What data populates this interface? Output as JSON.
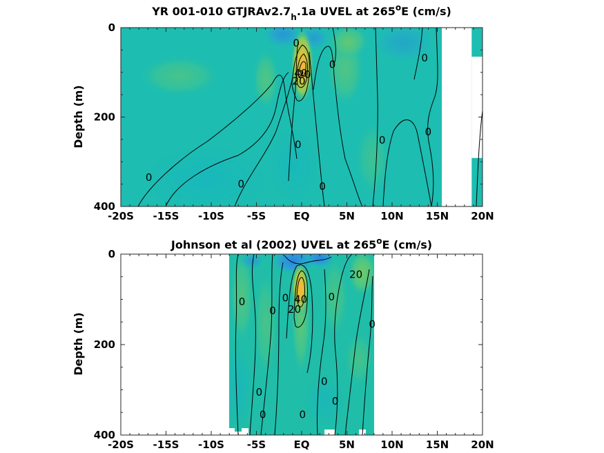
{
  "chart_data": [
    {
      "type": "contour",
      "title_main": "YR 001-010 GTJRAv2.7",
      "title_sub": "h",
      "title_mid": ".1a UVEL at 265",
      "title_sup": "o",
      "title_end": "E (cm/s)",
      "ylabel": "Depth (m)",
      "xlim": [
        -20,
        20
      ],
      "ylim": [
        0,
        400
      ],
      "y_reversed": true,
      "x_ticks": [
        -20,
        -15,
        -10,
        -5,
        0,
        5,
        10,
        15,
        20
      ],
      "x_tick_labels": [
        "-20S",
        "-15S",
        "-10S",
        "-5S",
        "EQ",
        "5N",
        "10N",
        "15N",
        "20N"
      ],
      "y_ticks": [
        0,
        200,
        400
      ],
      "y_tick_labels": [
        "0",
        "200",
        "400"
      ],
      "data_extent_x": [
        -20,
        20
      ],
      "blank_regions": [
        [
          15.5,
          0,
          18.8,
          400
        ],
        [
          18.8,
          65,
          20,
          290
        ]
      ],
      "core": {
        "x": 0.1,
        "y": 80,
        "value": 40
      },
      "contour_labels": [
        {
          "x": -16.9,
          "y": 335,
          "text": "0"
        },
        {
          "x": -6.7,
          "y": 350,
          "text": "0"
        },
        {
          "x": -0.4,
          "y": 262,
          "text": "0"
        },
        {
          "x": 2.3,
          "y": 355,
          "text": "0"
        },
        {
          "x": 8.9,
          "y": 252,
          "text": "0"
        },
        {
          "x": 14.0,
          "y": 233,
          "text": "0"
        },
        {
          "x": 3.4,
          "y": 83,
          "text": "0"
        },
        {
          "x": 13.6,
          "y": 68,
          "text": "0"
        },
        {
          "x": -0.6,
          "y": 35,
          "text": "0"
        },
        {
          "x": -0.1,
          "y": 102,
          "text": "40"
        },
        {
          "x": 0.3,
          "y": 105,
          "text": "20"
        },
        {
          "x": -0.3,
          "y": 120,
          "text": "20"
        }
      ]
    },
    {
      "type": "contour",
      "title_main": "Johnson et al (2002) UVEL at 265",
      "title_sup": "o",
      "title_end": "E (cm/s)",
      "ylabel": "Depth (m)",
      "xlim": [
        -20,
        20
      ],
      "ylim": [
        0,
        400
      ],
      "y_reversed": true,
      "x_ticks": [
        -20,
        -15,
        -10,
        -5,
        0,
        5,
        10,
        15,
        20
      ],
      "x_tick_labels": [
        "-20S",
        "-15S",
        "-10S",
        "-5S",
        "EQ",
        "5N",
        "10N",
        "15N",
        "20N"
      ],
      "y_ticks": [
        0,
        200,
        400
      ],
      "y_tick_labels": [
        "0",
        "200",
        "400"
      ],
      "data_extent_x": [
        -8,
        8
      ],
      "core": {
        "x": -0.1,
        "y": 70,
        "value": 40
      },
      "contour_labels": [
        {
          "x": 6.0,
          "y": 45,
          "text": "20"
        },
        {
          "x": -6.6,
          "y": 105,
          "text": "0"
        },
        {
          "x": -3.2,
          "y": 125,
          "text": "0"
        },
        {
          "x": -1.8,
          "y": 97,
          "text": "0"
        },
        {
          "x": -0.1,
          "y": 100,
          "text": "40"
        },
        {
          "x": -0.8,
          "y": 122,
          "text": "20"
        },
        {
          "x": 3.3,
          "y": 95,
          "text": "0"
        },
        {
          "x": 7.8,
          "y": 155,
          "text": "0"
        },
        {
          "x": 2.5,
          "y": 282,
          "text": "0"
        },
        {
          "x": 3.7,
          "y": 325,
          "text": "0"
        },
        {
          "x": -4.7,
          "y": 305,
          "text": "0"
        },
        {
          "x": -4.3,
          "y": 355,
          "text": "0"
        },
        {
          "x": 0.1,
          "y": 355,
          "text": "0"
        }
      ]
    }
  ]
}
